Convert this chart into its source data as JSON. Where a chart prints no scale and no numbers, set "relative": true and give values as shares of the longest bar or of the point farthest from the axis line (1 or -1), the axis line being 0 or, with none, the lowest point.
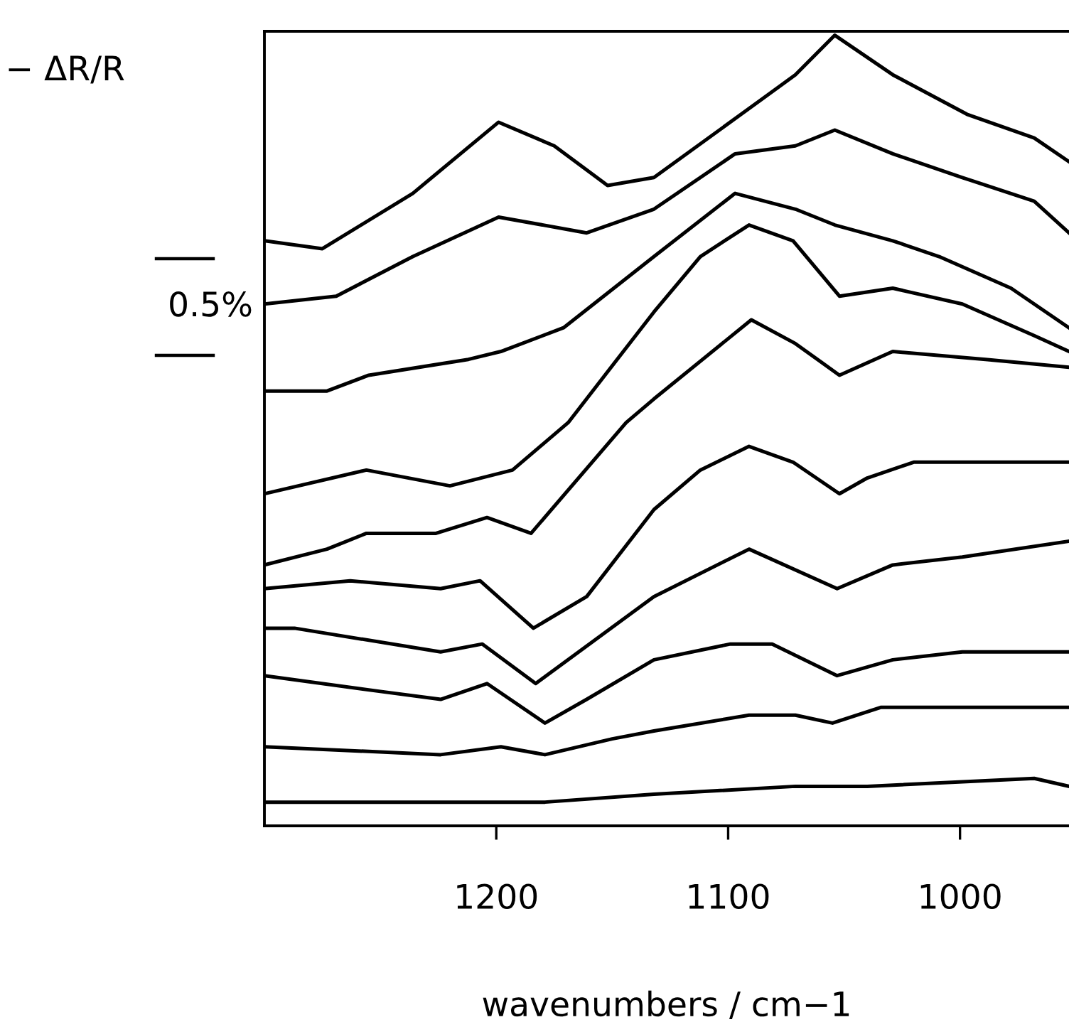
{
  "chart_data": {
    "type": "line",
    "relative": true,
    "xlabel": "wavenumbers / cm−1",
    "ylabel": "− ΔR/R",
    "annotations": [
      "0.5%"
    ],
    "xlim": [
      1300,
      953
    ],
    "xticks": [
      1200,
      1100,
      1000
    ],
    "grid": false,
    "marker": "none",
    "line_style": "solid",
    "tick_labels": "x",
    "series": [
      {
        "color": "#000000",
        "x": [
          1300,
          1275,
          1236,
          1199,
          1175,
          1152,
          1132,
          1085,
          1071,
          1054,
          1029,
          997,
          968,
          953
        ],
        "values": [
          0.74,
          0.73,
          0.8,
          0.89,
          0.86,
          0.81,
          0.82,
          0.92,
          0.95,
          1.0,
          0.95,
          0.9,
          0.87,
          0.84
        ]
      },
      {
        "color": "#000000",
        "x": [
          1300,
          1269,
          1236,
          1199,
          1161,
          1132,
          1097,
          1071,
          1054,
          1029,
          999,
          968,
          953
        ],
        "values": [
          0.66,
          0.67,
          0.72,
          0.77,
          0.75,
          0.78,
          0.85,
          0.86,
          0.88,
          0.85,
          0.82,
          0.79,
          0.75
        ]
      },
      {
        "color": "#000000",
        "x": [
          1300,
          1273,
          1255,
          1212,
          1198,
          1171,
          1132,
          1097,
          1071,
          1054,
          1029,
          1009,
          978,
          953
        ],
        "values": [
          0.55,
          0.55,
          0.57,
          0.59,
          0.6,
          0.63,
          0.72,
          0.8,
          0.78,
          0.76,
          0.74,
          0.72,
          0.68,
          0.63
        ]
      },
      {
        "color": "#000000",
        "x": [
          1300,
          1256,
          1220,
          1193,
          1169,
          1132,
          1112,
          1091,
          1072,
          1052,
          1029,
          999,
          968,
          953
        ],
        "values": [
          0.42,
          0.45,
          0.43,
          0.45,
          0.51,
          0.65,
          0.72,
          0.76,
          0.74,
          0.67,
          0.68,
          0.66,
          0.62,
          0.6
        ]
      },
      {
        "color": "#000000",
        "x": [
          1300,
          1273,
          1256,
          1226,
          1204,
          1185,
          1144,
          1132,
          1090,
          1071,
          1052,
          1029,
          989,
          953
        ],
        "values": [
          0.33,
          0.35,
          0.37,
          0.37,
          0.39,
          0.37,
          0.51,
          0.54,
          0.64,
          0.61,
          0.57,
          0.6,
          0.59,
          0.58
        ]
      },
      {
        "color": "#000000",
        "x": [
          1300,
          1263,
          1224,
          1207,
          1184,
          1161,
          1132,
          1112,
          1091,
          1072,
          1052,
          1040,
          1020,
          989,
          953
        ],
        "values": [
          0.3,
          0.31,
          0.3,
          0.31,
          0.25,
          0.29,
          0.4,
          0.45,
          0.48,
          0.46,
          0.42,
          0.44,
          0.46,
          0.46,
          0.46
        ]
      },
      {
        "color": "#000000",
        "x": [
          1300,
          1287,
          1224,
          1206,
          1183,
          1132,
          1091,
          1053,
          1029,
          999,
          953
        ],
        "values": [
          0.25,
          0.25,
          0.22,
          0.23,
          0.18,
          0.29,
          0.35,
          0.3,
          0.33,
          0.34,
          0.36
        ]
      },
      {
        "color": "#000000",
        "x": [
          1300,
          1250,
          1224,
          1204,
          1179,
          1161,
          1132,
          1099,
          1081,
          1053,
          1029,
          999,
          953
        ],
        "values": [
          0.19,
          0.17,
          0.16,
          0.18,
          0.13,
          0.16,
          0.21,
          0.23,
          0.23,
          0.19,
          0.21,
          0.22,
          0.22
        ]
      },
      {
        "color": "#000000",
        "x": [
          1300,
          1224,
          1198,
          1179,
          1150,
          1132,
          1091,
          1071,
          1055,
          1034,
          999,
          953
        ],
        "values": [
          0.1,
          0.09,
          0.1,
          0.09,
          0.11,
          0.12,
          0.14,
          0.14,
          0.13,
          0.15,
          0.15,
          0.15
        ]
      },
      {
        "color": "#000000",
        "x": [
          1300,
          1253,
          1201,
          1179,
          1132,
          1071,
          1052,
          1040,
          968,
          953
        ],
        "values": [
          0.03,
          0.03,
          0.03,
          0.03,
          0.04,
          0.05,
          0.05,
          0.05,
          0.06,
          0.05
        ]
      }
    ]
  }
}
